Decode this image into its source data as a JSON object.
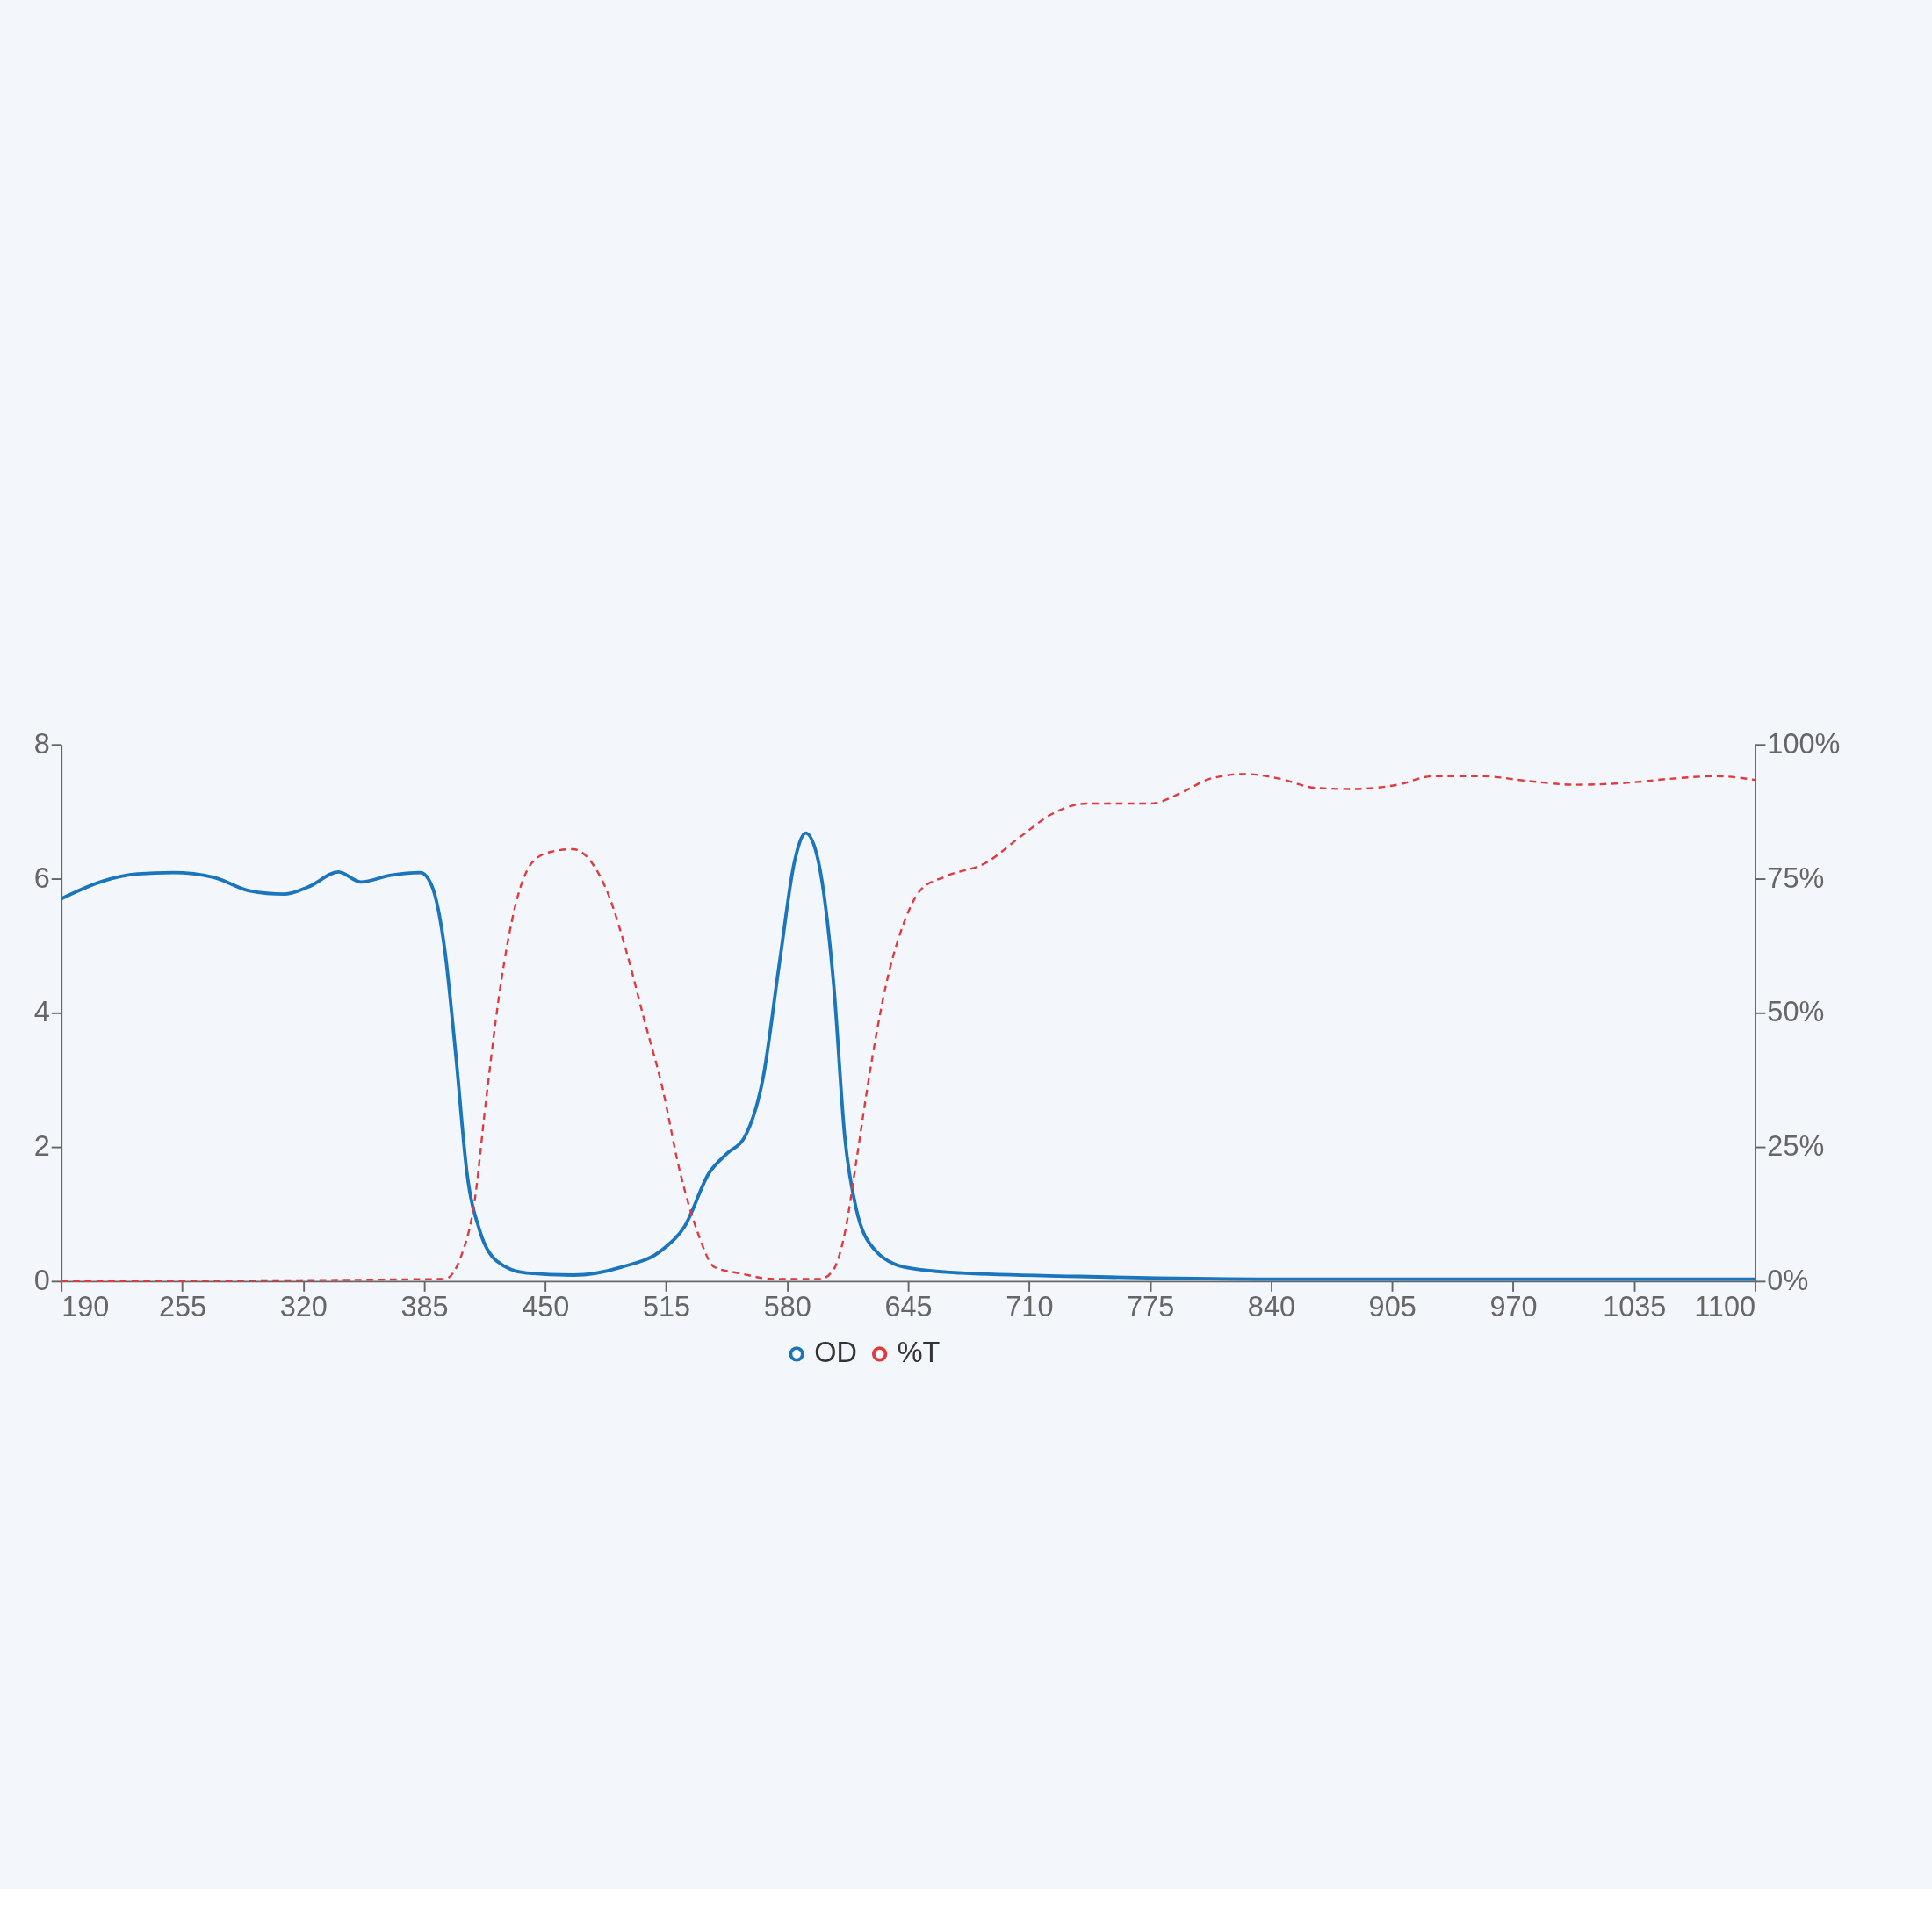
{
  "chart_data": {
    "type": "line",
    "grid": false,
    "legend": "bottom",
    "marker": "none",
    "xlim": [
      190,
      1100
    ],
    "xticks": [
      190,
      255,
      320,
      385,
      450,
      515,
      580,
      645,
      710,
      775,
      840,
      905,
      970,
      1035,
      1100
    ],
    "ylim": [
      0,
      8
    ],
    "yticks": [
      0,
      2,
      4,
      6,
      8
    ],
    "y2lim": [
      0,
      100
    ],
    "y2ticks": [
      {
        "value": 0,
        "label": "0%"
      },
      {
        "value": 25,
        "label": "25%"
      },
      {
        "value": 50,
        "label": "50%"
      },
      {
        "value": 75,
        "label": "75%"
      },
      {
        "value": 100,
        "label": "100%"
      }
    ],
    "series": [
      {
        "name": "OD",
        "color": "#1a75bc",
        "line_style": "solid",
        "x": [
          190,
          212,
          231,
          250,
          272,
          291,
          310,
          323,
          339,
          351,
          367,
          383,
          389,
          396,
          402,
          408,
          415,
          424,
          440,
          465,
          491,
          513,
          525,
          538,
          548,
          557,
          567,
          576,
          584,
          590,
          596,
          605,
          611,
          617,
          627,
          643,
          674,
          737,
          832,
          1100
        ],
        "values": [
          5.7,
          5.96,
          6.07,
          6.09,
          6.02,
          5.82,
          5.77,
          5.88,
          6.1,
          5.95,
          6.05,
          6.09,
          5.9,
          4.95,
          3.37,
          1.61,
          0.74,
          0.3,
          0.12,
          0.09,
          0.21,
          0.47,
          0.82,
          1.61,
          1.91,
          2.14,
          3.02,
          4.77,
          6.26,
          6.68,
          6.35,
          4.42,
          2.14,
          1.09,
          0.47,
          0.21,
          0.12,
          0.07,
          0.03,
          0.03
        ]
      },
      {
        "name": "%T",
        "color": "#e0393e",
        "line_style": "dashed",
        "axis": "y2",
        "x": [
          190,
          396,
          405,
          412,
          418,
          426,
          434,
          443,
          453,
          465,
          475,
          484,
          494,
          503,
          513,
          522,
          532,
          541,
          554,
          573,
          598,
          605,
          611,
          617,
          624,
          633,
          643,
          652,
          665,
          687,
          706,
          722,
          741,
          775,
          794,
          807,
          826,
          845,
          864,
          883,
          908,
          927,
          953,
          978,
          1003,
          1029,
          1054,
          1079,
          1100
        ],
        "values": [
          0,
          0.4,
          4.8,
          14.7,
          33,
          55,
          70,
          78,
          80,
          80.5,
          78,
          72,
          61,
          49,
          36,
          21,
          9,
          2.6,
          1.5,
          0.4,
          0.4,
          2.2,
          9,
          22,
          38,
          55,
          67,
          73,
          75.4,
          78,
          83,
          87,
          89,
          89,
          91.4,
          93.6,
          94.5,
          93.6,
          91.9,
          91.7,
          92.5,
          94.1,
          94.1,
          93.2,
          92.5,
          92.8,
          93.6,
          94.1,
          93.4
        ]
      }
    ]
  }
}
